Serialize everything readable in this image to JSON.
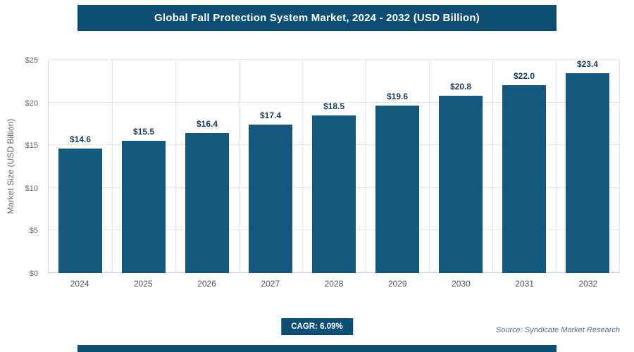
{
  "header": {
    "title": "Global Fall Protection System Market, 2024 - 2032 (USD Billion)"
  },
  "chart_data": {
    "type": "bar",
    "title": "Global Fall Protection System Market, 2024 - 2032 (USD Billion)",
    "categories": [
      "2024",
      "2025",
      "2026",
      "2027",
      "2028",
      "2029",
      "2030",
      "2031",
      "2032"
    ],
    "values": [
      14.6,
      15.5,
      16.4,
      17.4,
      18.5,
      19.6,
      20.8,
      22.0,
      23.4
    ],
    "bar_labels": [
      "$14.6",
      "$15.5",
      "$16.4",
      "$17.4",
      "$18.5",
      "$19.6",
      "$20.8",
      "$22.0",
      "$23.4"
    ],
    "xlabel": "",
    "ylabel": "Market Size (USD Billion)",
    "ylim": [
      0,
      25
    ],
    "ytick_values": [
      0,
      5,
      10,
      15,
      20,
      25
    ],
    "ytick_labels": [
      "$0",
      "$5",
      "$10",
      "$15",
      "$20",
      "$25"
    ],
    "grid": true,
    "legend": false,
    "bar_color": "#15587E"
  },
  "footer": {
    "cagr_label": "CAGR: 6.09%",
    "source": "Source: Syndicate Market Research"
  },
  "colors": {
    "header_bg": "#0D4E75",
    "badge_bg": "#0D4E75",
    "strip_bg": "#0D4E75",
    "bar": "#15587E",
    "value_label": "#1A3C5A",
    "axis_text": "#666666",
    "gridline": "#E6E6E6",
    "source_text": "#4A7198"
  }
}
